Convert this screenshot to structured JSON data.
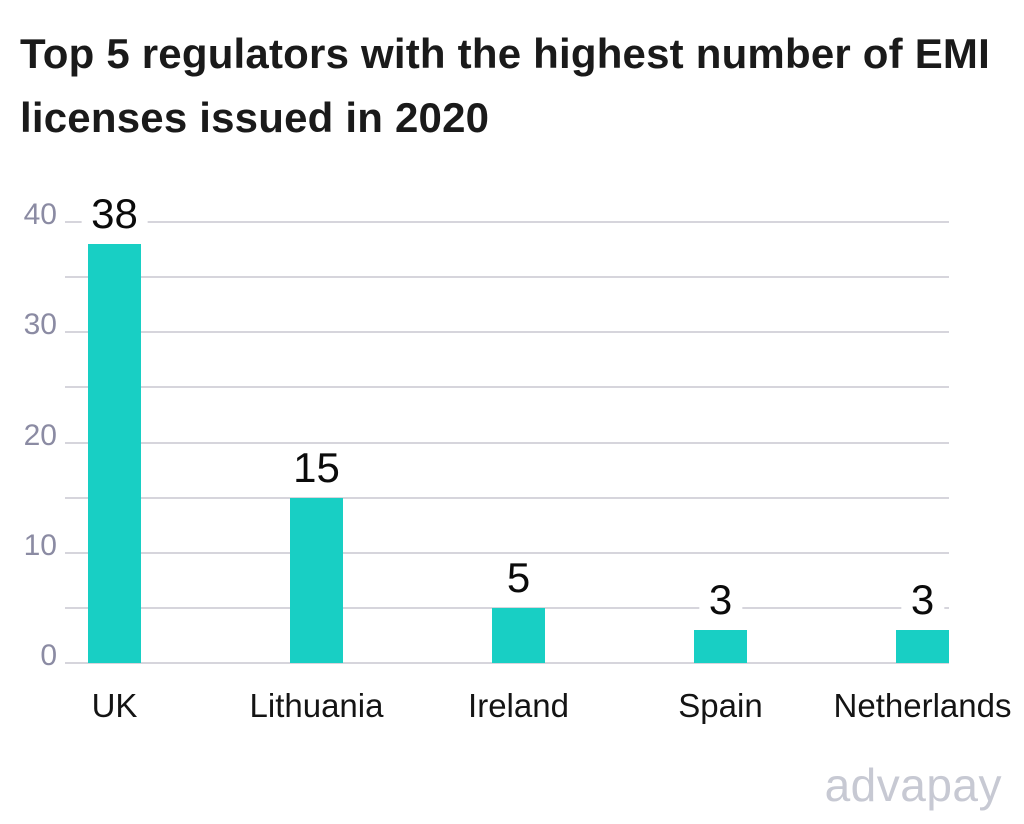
{
  "title": {
    "lines": [
      "Top 5 regulators with the highest number of EMI",
      "licenses issued in 2020"
    ]
  },
  "chart_data": {
    "type": "bar",
    "title": "Top 5 regulators with the highest number of EMI licenses issued in 2020",
    "categories": [
      "UK",
      "Lithuania",
      "Ireland",
      "Spain",
      "Netherlands"
    ],
    "values": [
      38,
      15,
      5,
      3,
      3
    ],
    "bar_labels": [
      "38",
      "15",
      "5",
      "3",
      "3"
    ],
    "xlabel": "",
    "ylabel": "",
    "ylim": [
      0,
      40
    ],
    "yticks": [
      0,
      10,
      20,
      30,
      40
    ],
    "gridline_step": 5,
    "grid": true,
    "legend": false
  },
  "colors": {
    "bar": "#18cfc4",
    "gridline": "#d6d5dc",
    "axis_label": "#8b8ba3",
    "title_text": "#1a1a1a",
    "value_label": "#0b0b0b",
    "category_label": "#141414",
    "logo": "#c7c9d3",
    "background": "#ffffff"
  },
  "branding": {
    "logo_text": "advapay"
  }
}
